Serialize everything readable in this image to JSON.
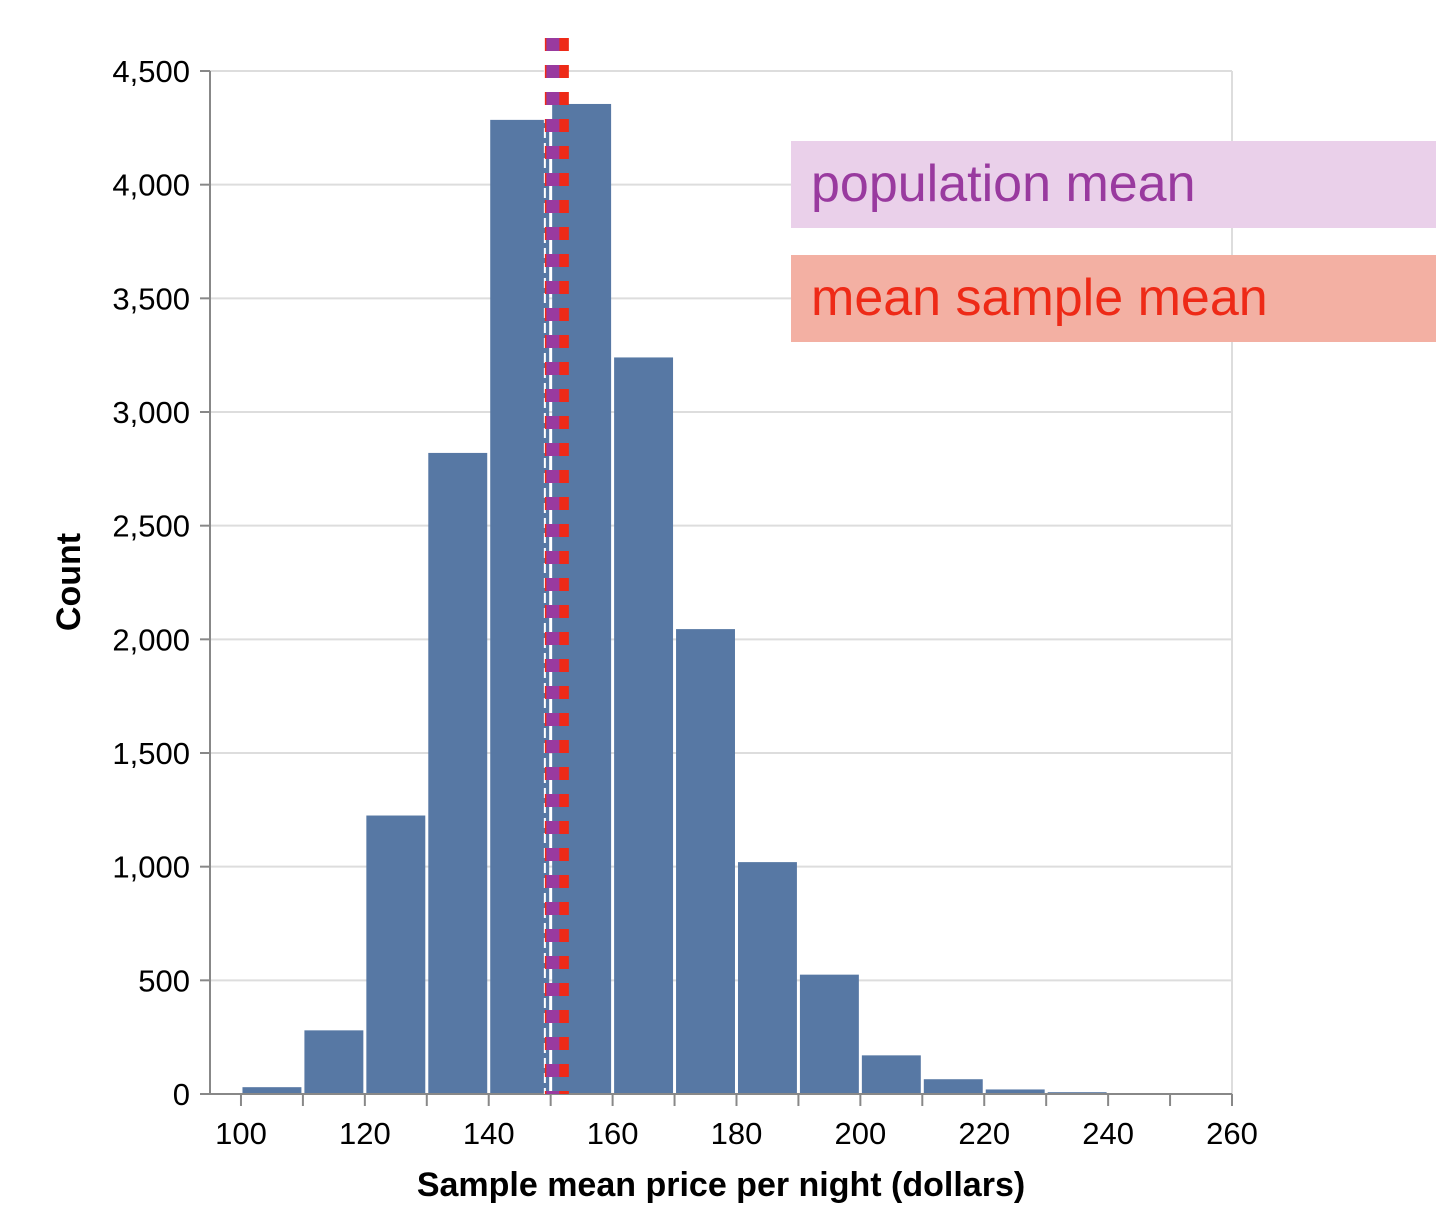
{
  "chart_data": {
    "type": "bar",
    "bin_edges": [
      100,
      110,
      120,
      130,
      140,
      150,
      160,
      170,
      180,
      190,
      200,
      210,
      220,
      230,
      240,
      250,
      260
    ],
    "values": [
      30,
      280,
      1225,
      2820,
      4285,
      4355,
      3240,
      2045,
      1020,
      525,
      170,
      65,
      20,
      8,
      4,
      2
    ],
    "xlabel": "Sample mean price per night (dollars)",
    "ylabel": "Count",
    "xlim": [
      95,
      260
    ],
    "ylim": [
      0,
      4500
    ],
    "x_ticks": [
      100,
      120,
      140,
      160,
      180,
      200,
      220,
      240,
      260
    ],
    "y_ticks": [
      0,
      500,
      1000,
      1500,
      2000,
      2500,
      3000,
      3500,
      4000,
      4500
    ],
    "y_tick_labels": [
      "0",
      "500",
      "1,000",
      "1,500",
      "2,000",
      "2,500",
      "3,000",
      "3,500",
      "4,000",
      "4,500"
    ],
    "grid": true,
    "reference_lines": [
      {
        "name": "population mean",
        "x": 151,
        "color": "#993a9f"
      },
      {
        "name": "mean sample mean",
        "x": 151,
        "color": "#ee2a17"
      }
    ],
    "bar_color": "#5778a4"
  },
  "legend": {
    "population_label": "population mean",
    "mean_label": "mean sample mean"
  }
}
